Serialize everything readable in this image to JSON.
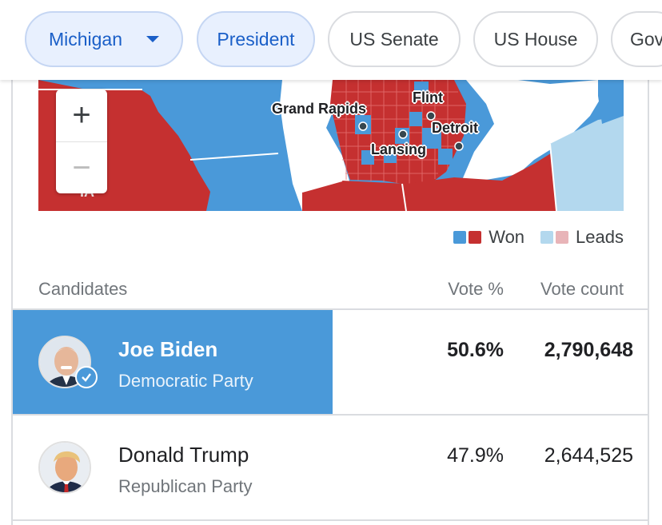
{
  "chips": [
    {
      "label": "Michigan",
      "active": true,
      "has_caret": true
    },
    {
      "label": "President",
      "active": true
    },
    {
      "label": "US Senate",
      "active": false
    },
    {
      "label": "US House",
      "active": false
    },
    {
      "label": "Gov",
      "active": false
    }
  ],
  "map": {
    "zoom_in": "+",
    "zoom_out": "−",
    "state_abbrev": "IA",
    "cities": [
      "Grand Rapids",
      "Flint",
      "Detroit",
      "Lansing"
    ],
    "colors": {
      "won_red": "#c53030",
      "won_blue": "#4a99d9",
      "leads_blue": "#b3d8ee",
      "leads_red": "#e8b4b8"
    }
  },
  "legend": {
    "won": "Won",
    "leads": "Leads"
  },
  "table": {
    "headers": {
      "candidates": "Candidates",
      "vote_pct": "Vote %",
      "vote_count": "Vote count"
    },
    "rows": [
      {
        "name": "Joe Biden",
        "party": "Democratic Party",
        "vote_pct": "50.6%",
        "vote_count": "2,790,648",
        "winner": true
      },
      {
        "name": "Donald Trump",
        "party": "Republican Party",
        "vote_pct": "47.9%",
        "vote_count": "2,644,525",
        "winner": false
      }
    ]
  }
}
